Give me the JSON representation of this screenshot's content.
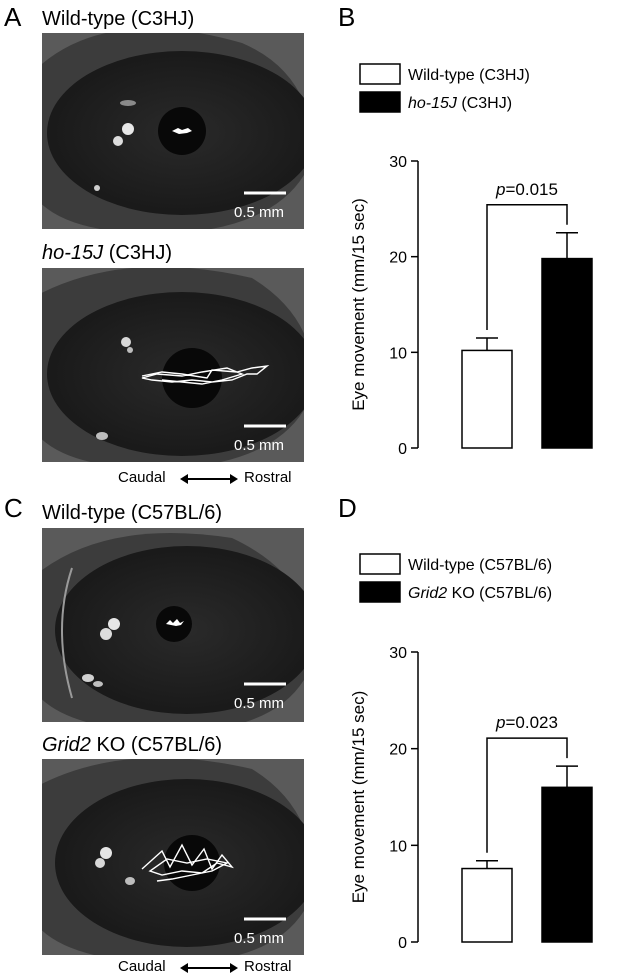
{
  "panels": {
    "A": {
      "label": "A",
      "title_top": "Wild-type (C3HJ)",
      "title_bottom_italic": "ho-15J",
      "title_bottom_rest": " (C3HJ)",
      "scale_top": "0.5 mm",
      "scale_bottom": "0.5 mm"
    },
    "B": {
      "label": "B"
    },
    "C": {
      "label": "C",
      "title_top": "Wild-type (C57BL/6)",
      "title_bottom_italic": "Grid2",
      "title_bottom_rest": " KO (C57BL/6)",
      "scale_top": "0.5 mm",
      "scale_bottom": "0.5 mm"
    },
    "D": {
      "label": "D"
    }
  },
  "direction": {
    "left": "Caudal",
    "right": "Rostral"
  },
  "colors": {
    "wildtype": "#ffffff",
    "mutant": "#000000",
    "photo_bg": "#4a4a4a",
    "trace": "#ffffff"
  },
  "chart_data": [
    {
      "type": "bar",
      "panel": "B",
      "categories": [
        "Wild-type (C3HJ)",
        "ho-15J (C3HJ)"
      ],
      "legend": [
        {
          "italic": "",
          "text": "Wild-type (C3HJ)",
          "color": "#ffffff"
        },
        {
          "italic": "ho-15J",
          "text": " (C3HJ)",
          "color": "#000000"
        }
      ],
      "values": [
        10.2,
        19.8
      ],
      "errors": [
        1.3,
        2.7
      ],
      "ylabel": "Eye movement (mm/15 sec)",
      "ylim": [
        0,
        30
      ],
      "yticks": [
        "0",
        "10",
        "20",
        "30"
      ],
      "significance": {
        "prefix": "p",
        "value": "=0.015"
      }
    },
    {
      "type": "bar",
      "panel": "D",
      "categories": [
        "Wild-type (C57BL/6)",
        "Grid2 KO (C57BL/6)"
      ],
      "legend": [
        {
          "italic": "",
          "text": "Wild-type (C57BL/6)",
          "color": "#ffffff"
        },
        {
          "italic": "Grid2",
          "text": " KO (C57BL/6)",
          "color": "#000000"
        }
      ],
      "values": [
        7.6,
        16.0
      ],
      "errors": [
        0.8,
        2.2
      ],
      "ylabel": "Eye movement (mm/15 sec)",
      "ylim": [
        0,
        30
      ],
      "yticks": [
        "0",
        "10",
        "20",
        "30"
      ],
      "significance": {
        "prefix": "p",
        "value": "=0.023"
      }
    }
  ]
}
